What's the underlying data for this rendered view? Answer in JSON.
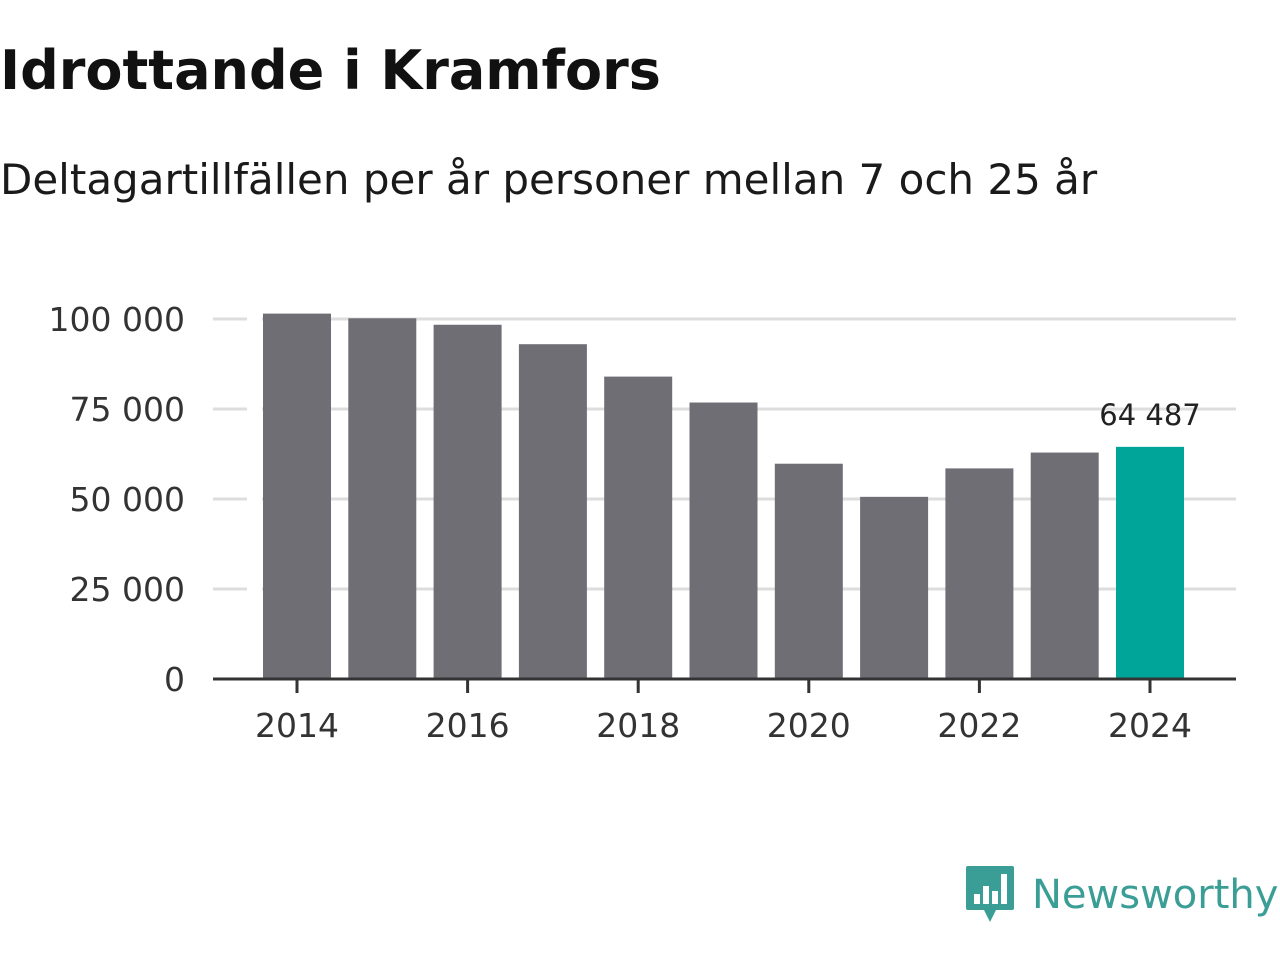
{
  "title": "Idrottande i Kramfors",
  "subtitle": "Deltagartillfällen per år personer mellan 7 och 25 år",
  "colors": {
    "bar": "#6f6e74",
    "highlight": "#00a59a",
    "grid": "#dddddd",
    "axis": "#333333",
    "brand": "#3a9e96"
  },
  "brand": {
    "name": "Newsworthy",
    "icon": "bar-chart-bubble-icon"
  },
  "chart_data": {
    "type": "bar",
    "title": "Idrottande i Kramfors",
    "subtitle": "Deltagartillfällen per år personer mellan 7 och 25 år",
    "xlabel": "",
    "ylabel": "",
    "categories": [
      "2014",
      "2015",
      "2016",
      "2017",
      "2018",
      "2019",
      "2020",
      "2021",
      "2022",
      "2023",
      "2024"
    ],
    "values": [
      101500,
      100200,
      98400,
      93000,
      84000,
      76800,
      59800,
      50600,
      58500,
      62900,
      64487
    ],
    "highlight_index": 10,
    "data_labels": [
      {
        "index": 10,
        "text": "64 487"
      }
    ],
    "ylim": [
      0,
      100000
    ],
    "y_ticks": [
      0,
      25000,
      50000,
      75000,
      100000
    ],
    "y_tick_labels": [
      "0",
      "25 000",
      "50 000",
      "75 000",
      "100 000"
    ],
    "x_tick_labels": [
      "2014",
      "2016",
      "2018",
      "2020",
      "2022",
      "2024"
    ],
    "grid": true
  }
}
